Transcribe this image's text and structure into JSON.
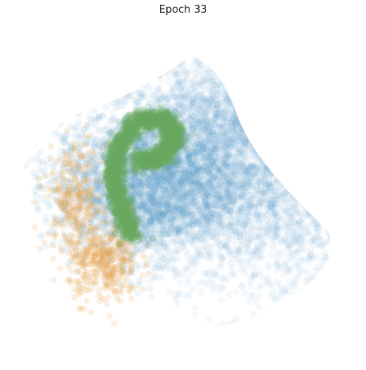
{
  "chart_data": {
    "type": "scatter",
    "title": "Epoch 33",
    "xlabel": "",
    "ylabel": "",
    "axes_visible": false,
    "grid": false,
    "legend": "none",
    "series": [
      {
        "color": "#5b9ccb",
        "opacity": "low",
        "clusters": [
          {
            "center": [
              0.15,
              0.28
            ],
            "spread": [
              0.45,
              0.55
            ],
            "weight": 0.55
          },
          {
            "center": [
              0.78,
              -0.05
            ],
            "spread": [
              0.45,
              0.55
            ],
            "weight": 0.3
          },
          {
            "center": [
              0.55,
              0.62
            ],
            "spread": [
              0.25,
              0.2
            ],
            "weight": 0.15
          }
        ]
      },
      {
        "color": "#e8a24a",
        "opacity": "medium",
        "clusters": [
          {
            "center": [
              -0.55,
              -0.55
            ],
            "spread": [
              0.12,
              0.15
            ],
            "weight": 0.6
          },
          {
            "center": [
              -0.75,
              -0.05
            ],
            "spread": [
              0.1,
              0.2
            ],
            "weight": 0.4
          }
        ]
      },
      {
        "color": "#6aaa5e",
        "opacity": "high",
        "shape": "curved stroke",
        "path": [
          [
            -0.35,
            -0.35
          ],
          [
            -0.42,
            -0.15
          ],
          [
            -0.48,
            0.1
          ],
          [
            -0.45,
            0.35
          ],
          [
            -0.3,
            0.55
          ],
          [
            -0.12,
            0.55
          ],
          [
            -0.05,
            0.4
          ],
          [
            -0.15,
            0.25
          ],
          [
            -0.32,
            0.22
          ]
        ]
      }
    ]
  }
}
